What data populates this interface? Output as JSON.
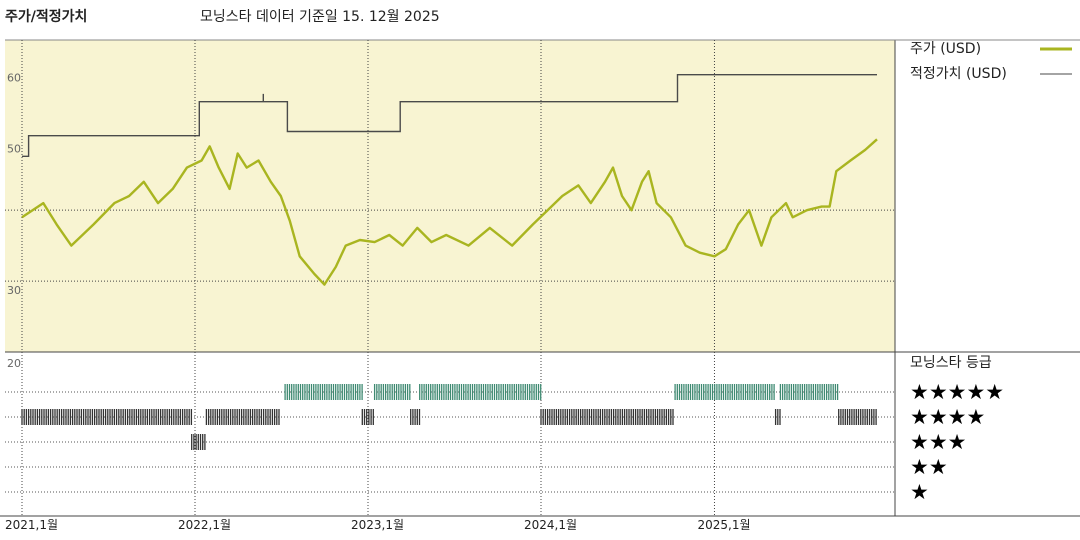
{
  "header": {
    "left": "주가/적정가치",
    "middle": "모닝스타 데이터 기준일 15. 12월 2025"
  },
  "colors": {
    "price_line": "#a9b520",
    "fair_value_line": "#4a4a4a",
    "price_panel_bg": "#f8f4d2",
    "rating_teal": "#3f8a72",
    "rating_dark": "#333333",
    "grid": "#444444"
  },
  "chart_data": [
    {
      "type": "line",
      "title": "",
      "legend": "top-right",
      "x_range": [
        "2021-01-01",
        "2025-12-15"
      ],
      "ylim": [
        20,
        64
      ],
      "y_ticks": [
        30,
        50,
        60
      ],
      "y_tick_labels": [
        "30",
        "50",
        "60"
      ],
      "x_tick_labels": [
        "2021,1월",
        "2022,1월",
        "2023,1월",
        "2024,1월",
        "2025,1월"
      ],
      "x_tick_dates": [
        "2021-01-01",
        "2022-01-01",
        "2023-01-01",
        "2024-01-01",
        "2025-01-01"
      ],
      "grid": true,
      "series": [
        {
          "name": "주가 (USD)",
          "points": [
            [
              "2021-01-01",
              39.0
            ],
            [
              "2021-02-15",
              41.0
            ],
            [
              "2021-03-15",
              38.0
            ],
            [
              "2021-04-15",
              35.0
            ],
            [
              "2021-06-01",
              38.0
            ],
            [
              "2021-07-15",
              41.0
            ],
            [
              "2021-08-15",
              42.0
            ],
            [
              "2021-09-15",
              44.0
            ],
            [
              "2021-10-15",
              41.0
            ],
            [
              "2021-11-15",
              43.0
            ],
            [
              "2021-12-15",
              46.0
            ],
            [
              "2022-01-15",
              47.0
            ],
            [
              "2022-02-01",
              49.0
            ],
            [
              "2022-02-20",
              46.0
            ],
            [
              "2022-03-15",
              43.0
            ],
            [
              "2022-04-01",
              48.0
            ],
            [
              "2022-04-20",
              46.0
            ],
            [
              "2022-05-15",
              47.0
            ],
            [
              "2022-06-10",
              44.0
            ],
            [
              "2022-07-01",
              42.0
            ],
            [
              "2022-07-20",
              38.5
            ],
            [
              "2022-08-10",
              33.5
            ],
            [
              "2022-09-10",
              31.0
            ],
            [
              "2022-10-01",
              29.5
            ],
            [
              "2022-10-25",
              32.0
            ],
            [
              "2022-11-15",
              35.0
            ],
            [
              "2022-12-15",
              35.8
            ],
            [
              "2023-01-15",
              35.5
            ],
            [
              "2023-02-15",
              36.5
            ],
            [
              "2023-03-15",
              35.0
            ],
            [
              "2023-04-15",
              37.5
            ],
            [
              "2023-05-15",
              35.5
            ],
            [
              "2023-06-15",
              36.5
            ],
            [
              "2023-08-01",
              35.0
            ],
            [
              "2023-09-15",
              37.5
            ],
            [
              "2023-11-01",
              35.0
            ],
            [
              "2023-12-15",
              38.0
            ],
            [
              "2024-01-15",
              40.0
            ],
            [
              "2024-02-15",
              42.0
            ],
            [
              "2024-03-20",
              43.5
            ],
            [
              "2024-04-15",
              41.0
            ],
            [
              "2024-05-15",
              44.0
            ],
            [
              "2024-06-01",
              46.0
            ],
            [
              "2024-06-20",
              42.0
            ],
            [
              "2024-07-10",
              40.0
            ],
            [
              "2024-08-01",
              44.0
            ],
            [
              "2024-08-15",
              45.5
            ],
            [
              "2024-09-01",
              41.0
            ],
            [
              "2024-10-01",
              39.0
            ],
            [
              "2024-11-01",
              35.0
            ],
            [
              "2024-12-01",
              34.0
            ],
            [
              "2025-01-01",
              33.5
            ],
            [
              "2025-01-25",
              34.5
            ],
            [
              "2025-02-20",
              38.0
            ],
            [
              "2025-03-15",
              40.0
            ],
            [
              "2025-04-10",
              35.0
            ],
            [
              "2025-05-01",
              39.0
            ],
            [
              "2025-06-01",
              41.0
            ],
            [
              "2025-06-15",
              39.0
            ],
            [
              "2025-07-15",
              40.0
            ],
            [
              "2025-08-15",
              40.5
            ],
            [
              "2025-09-01",
              40.5
            ],
            [
              "2025-09-15",
              45.5
            ],
            [
              "2025-10-15",
              47.0
            ],
            [
              "2025-11-15",
              48.5
            ],
            [
              "2025-12-10",
              50.0
            ]
          ]
        },
        {
          "name": "적정가치 (USD)",
          "step": true,
          "points": [
            [
              "2021-01-01",
              47.6
            ],
            [
              "2021-01-15",
              47.6
            ],
            [
              "2021-01-15",
              50.5
            ],
            [
              "2022-01-10",
              50.5
            ],
            [
              "2022-01-10",
              55.3
            ],
            [
              "2022-05-25",
              55.3
            ],
            [
              "2022-05-25",
              56.4
            ],
            [
              "2022-05-25",
              55.3
            ],
            [
              "2022-07-15",
              55.3
            ],
            [
              "2022-07-15",
              51.1
            ],
            [
              "2023-03-10",
              51.1
            ],
            [
              "2023-03-10",
              55.3
            ],
            [
              "2024-10-15",
              55.3
            ],
            [
              "2024-10-15",
              59.1
            ],
            [
              "2025-12-10",
              59.1
            ]
          ]
        }
      ]
    },
    {
      "type": "bar",
      "title": "모닝스타 등급",
      "y_tick_labels": [
        "20"
      ],
      "rating_labels": [
        "★★★★★",
        "★★★★",
        "★★★",
        "★★",
        "★"
      ],
      "series": [
        {
          "name": "★★★★★",
          "segments": [
            [
              "2022-07-10",
              "2022-12-20"
            ],
            [
              "2023-01-15",
              "2023-04-01"
            ],
            [
              "2023-04-20",
              "2024-01-01"
            ],
            [
              "2024-10-10",
              "2025-05-10"
            ],
            [
              "2025-05-20",
              "2025-09-20"
            ]
          ]
        },
        {
          "name": "★★★★",
          "segments": [
            [
              "2021-01-01",
              "2021-12-25"
            ],
            [
              "2022-01-25",
              "2022-06-30"
            ],
            [
              "2022-12-20",
              "2023-01-15"
            ],
            [
              "2023-04-01",
              "2023-04-20"
            ],
            [
              "2024-01-01",
              "2024-10-10"
            ],
            [
              "2025-05-10",
              "2025-05-20"
            ],
            [
              "2025-09-20",
              "2025-12-10"
            ]
          ]
        },
        {
          "name": "★★★",
          "segments": [
            [
              "2021-12-25",
              "2022-01-25"
            ]
          ]
        }
      ]
    }
  ]
}
